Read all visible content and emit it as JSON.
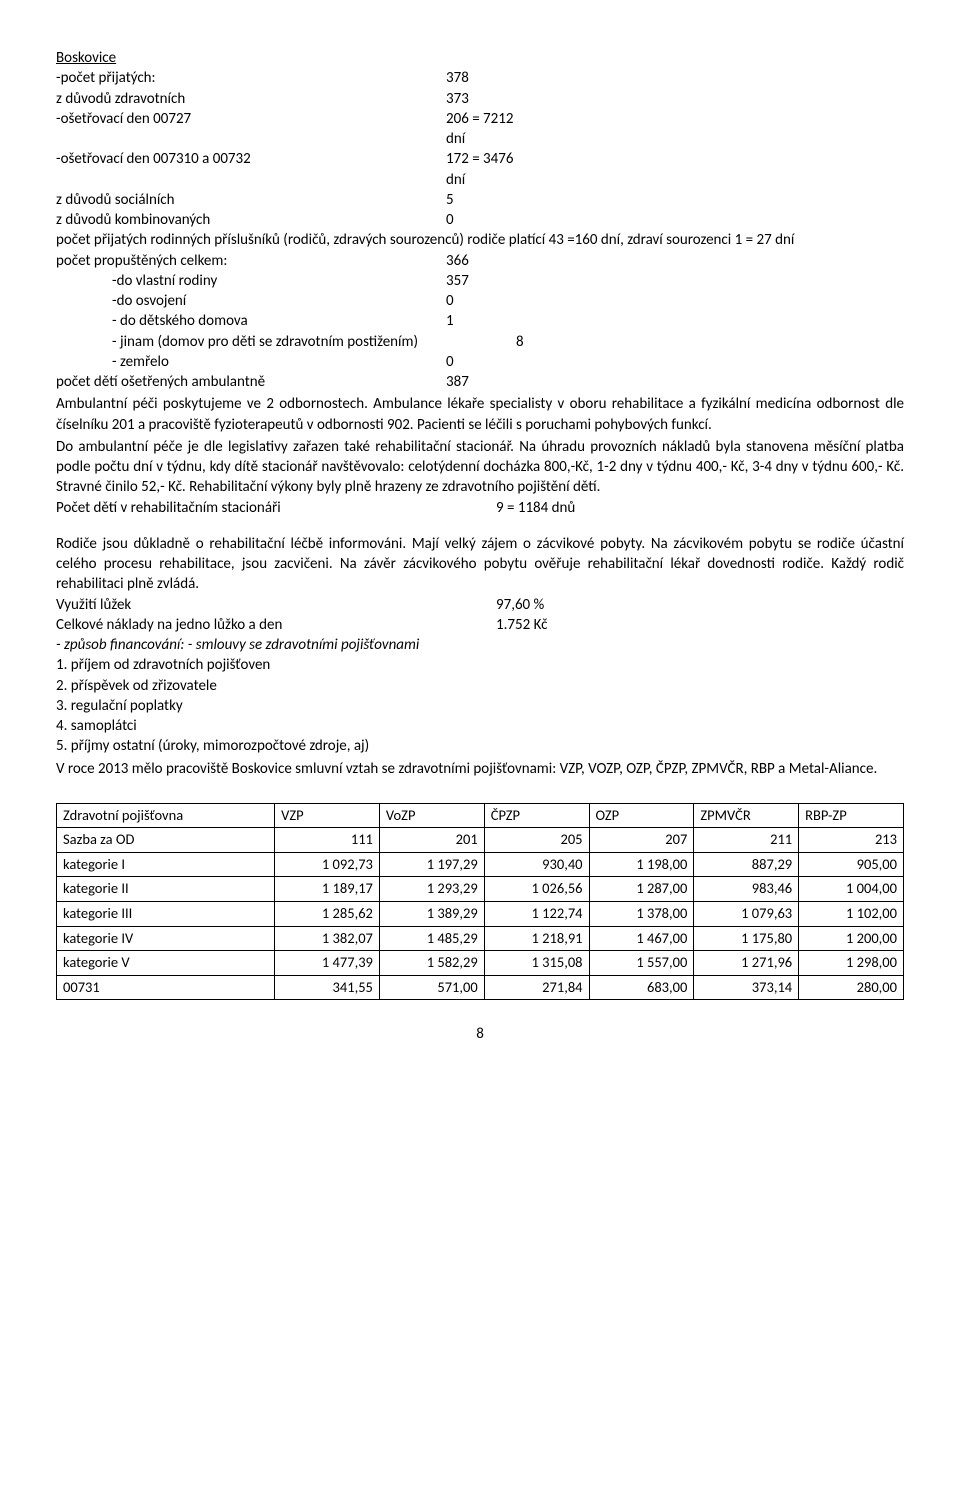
{
  "heading": "Boskovice",
  "stats": {
    "l1": {
      "label": "-počet přijatých:",
      "val": "378"
    },
    "l2": {
      "label": "z důvodů zdravotních",
      "val": "373"
    },
    "l3": {
      "label": "-ošetřovací den 00727",
      "val": "206 = 7212 dní"
    },
    "l4": {
      "label": "-ošetřovací den 007310 a 00732",
      "val": "172 = 3476 dní"
    },
    "l5": {
      "label": "z důvodů sociálních",
      "val": "5"
    },
    "l6": {
      "label": "z důvodů kombinovaných",
      "val": "0"
    }
  },
  "line_rodinnych": "počet přijatých rodinných příslušníků (rodičů, zdravých sourozenců) rodiče platící 43 =160 dní, zdraví sourozenci 1 = 27 dní",
  "prop": {
    "head": {
      "label": "počet propuštěných celkem:",
      "val": "366"
    },
    "r1": {
      "label": "-do vlastní rodiny",
      "val": "357"
    },
    "r2": {
      "label": "-do osvojení",
      "val": "0"
    },
    "r3": {
      "label": "- do dětského domova",
      "val": "1"
    },
    "r4": {
      "label": "- jinam (domov pro děti se zdravotním postižením)",
      "val": "8"
    },
    "r5": {
      "label": "- zemřelo",
      "val": "0"
    },
    "amb": {
      "label": "počet dětí ošetřených ambulantně",
      "val": "387"
    }
  },
  "para1": "Ambulantní péči poskytujeme ve 2 odbornostech. Ambulance lékaře specialisty v oboru rehabilitace a fyzikální medicína odbornost dle číselníku 201 a  pracoviště fyzioterapeutů v odbornosti 902. Pacienti se léčili s poruchami pohybových funkcí.",
  "para2": "Do ambulantní péče je dle legislativy zařazen také rehabilitační stacionář. Na úhradu provozních nákladů byla stanovena  měsíční platba podle počtu dní v týdnu, kdy dítě stacionář navštěvovalo: celotýdenní docházka 800,-Kč, 1-2 dny v týdnu 400,- Kč, 3-4 dny v týdnu 600,- Kč. Stravné činilo 52,- Kč. Rehabilitační výkony byly plně hrazeny ze zdravotního pojištění dětí.",
  "stac": {
    "label": "Počet dětí v rehabilitačním stacionáři",
    "val": "9 = 1184 dnů"
  },
  "para3": "Rodiče jsou důkladně o rehabilitační léčbě informováni. Mají velký zájem o zácvikové pobyty. Na zácvikovém pobytu se rodiče účastní celého procesu rehabilitace, jsou zacvičeni. Na závěr zácvikového pobytu ověřuje rehabilitační lékař dovednosti rodiče. Každý rodič rehabilitaci plně zvládá.",
  "util": {
    "label": "Využití lůžek",
    "val": "97,60 %"
  },
  "cost": {
    "label": "Celkové náklady na jedno lůžko a den",
    "val": "1.752 Kč"
  },
  "fin_head": " - způsob financování: - smlouvy se zdravotními pojišťovnami",
  "fin1": "1. příjem od zdravotních pojišťoven",
  "fin2": "2. příspěvek od zřizovatele",
  "fin3": "3. regulační poplatky",
  "fin4": "4. samoplátci",
  "fin5": "5. příjmy ostatní (úroky, mimorozpočtové zdroje, aj)",
  "para4": "V roce 2013 mělo pracoviště Boskovice smluvní vztah se zdravotními  pojišťovnami: VZP, VOZP, OZP, ČPZP, ZPMVČR, RBP a Metal-Aliance.",
  "table": {
    "columns": [
      "Zdravotní pojišťovna",
      "VZP",
      "VoZP",
      "ČPZP",
      "OZP",
      "ZPMVČR",
      "RBP-ZP"
    ],
    "rows": [
      [
        "Sazba za OD",
        "111",
        "201",
        "205",
        "207",
        "211",
        "213"
      ],
      [
        "kategorie I",
        "1 092,73",
        "1 197,29",
        "930,40",
        "1 198,00",
        "887,29",
        "905,00"
      ],
      [
        "kategorie II",
        "1 189,17",
        "1 293,29",
        "1 026,56",
        "1 287,00",
        "983,46",
        "1 004,00"
      ],
      [
        "kategorie III",
        "1 285,62",
        "1 389,29",
        "1 122,74",
        "1 378,00",
        "1 079,63",
        "1 102,00"
      ],
      [
        "kategorie IV",
        "1 382,07",
        "1 485,29",
        "1 218,91",
        "1 467,00",
        "1 175,80",
        "1 200,00"
      ],
      [
        "kategorie V",
        "1 477,39",
        "1 582,29",
        "1 315,08",
        "1 557,00",
        "1 271,96",
        "1 298,00"
      ],
      [
        "00731",
        "341,55",
        "571,00",
        "271,84",
        "683,00",
        "373,14",
        "280,00"
      ]
    ]
  },
  "pagenum": "8"
}
